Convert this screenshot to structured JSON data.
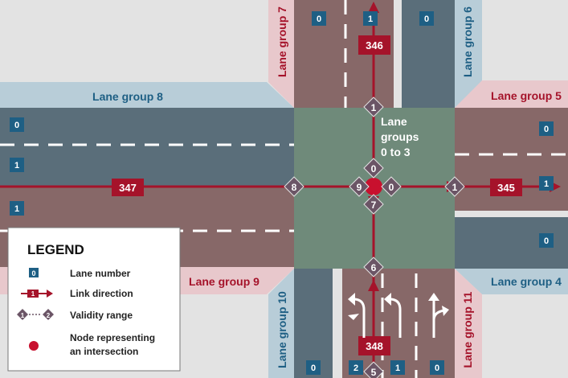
{
  "lane_groups": {
    "g0_3": {
      "line1": "Lane",
      "line2": "groups",
      "line3": "0 to 3"
    },
    "g4": "Lane group 4",
    "g5": "Lane group 5",
    "g6": "Lane group 6",
    "g7": "Lane group 7",
    "g8": "Lane group 8",
    "g9": "Lane group 9",
    "g10": "Lane group 10",
    "g11": "Lane group 11"
  },
  "links": {
    "north": "346",
    "east": "345",
    "west": "347",
    "south": "348"
  },
  "lane_numbers": {
    "g8_top": "0",
    "g8_bottom": "1",
    "g9_top": "1",
    "g5_top": "0",
    "g5_bottom": "1",
    "g4": "0",
    "g7_left": "0",
    "g7_right": "1",
    "g6": "0",
    "g10": "0",
    "g11_left": "2",
    "g11_mid": "1",
    "g11_right": "0"
  },
  "validity": {
    "north": "1",
    "east_outer": "1",
    "west_outer": "8",
    "south_outer": "6",
    "south_edge": "5",
    "inner_north": "0",
    "inner_east": "0",
    "inner_west": "9",
    "inner_south": "7"
  },
  "legend": {
    "title": "LEGEND",
    "lane_number": "Lane number",
    "lane_icon": "0",
    "link_direction": "Link direction",
    "link_icon": "1",
    "validity_range": "Validity range",
    "validity_from": "1",
    "validity_to": "2",
    "node": "Node representing",
    "node_line2": "an intersection"
  },
  "colors": {
    "blue": "#1e5f84",
    "red": "#a5132a"
  }
}
